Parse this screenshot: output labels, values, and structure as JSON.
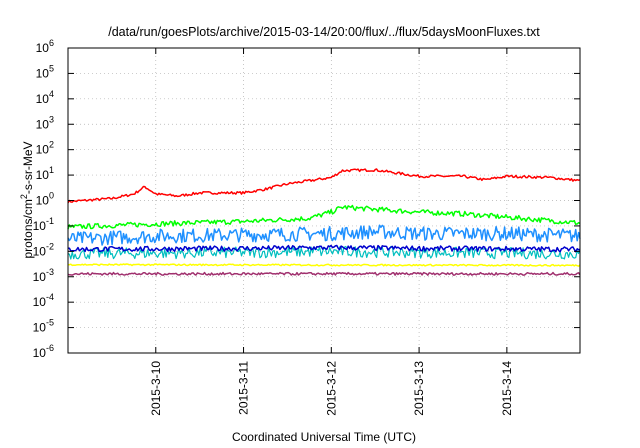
{
  "chart_data": {
    "type": "line",
    "title": "/data/run/goesPlots/archive/2015-03-14/20:00/flux/../flux/5daysMoonFluxes.txt",
    "xlabel": "Coordinated Universal Time (UTC)",
    "ylabel_parts": [
      "protons/cm",
      "2",
      "-s-sr-MeV"
    ],
    "y_scale": "log",
    "ylim": [
      1e-06,
      1000000.0
    ],
    "y_ticks": [
      {
        "base": "10",
        "exp": "-6",
        "value": 1e-06
      },
      {
        "base": "10",
        "exp": "-5",
        "value": 1e-05
      },
      {
        "base": "10",
        "exp": "-4",
        "value": 0.0001
      },
      {
        "base": "10",
        "exp": "-3",
        "value": 0.001
      },
      {
        "base": "10",
        "exp": "-2",
        "value": 0.01
      },
      {
        "base": "10",
        "exp": "-1",
        "value": 0.1
      },
      {
        "base": "10",
        "exp": "0",
        "value": 1
      },
      {
        "base": "10",
        "exp": "1",
        "value": 10
      },
      {
        "base": "10",
        "exp": "2",
        "value": 100
      },
      {
        "base": "10",
        "exp": "3",
        "value": 1000
      },
      {
        "base": "10",
        "exp": "4",
        "value": 10000
      },
      {
        "base": "10",
        "exp": "5",
        "value": 100000
      },
      {
        "base": "10",
        "exp": "6",
        "value": 1000000
      }
    ],
    "xlim": [
      "2015-03-09T00:00",
      "2015-03-14T20:00"
    ],
    "x_ticks": [
      {
        "label": "2015-3-10",
        "date": "2015-03-10T00:00"
      },
      {
        "label": "2015-3-11",
        "date": "2015-03-11T00:00"
      },
      {
        "label": "2015-3-12",
        "date": "2015-03-12T00:00"
      },
      {
        "label": "2015-3-13",
        "date": "2015-03-13T00:00"
      },
      {
        "label": "2015-3-14",
        "date": "2015-03-14T00:00"
      }
    ],
    "grid": true,
    "series": [
      {
        "color": "#ff0000",
        "width": 1.5,
        "jitter": 0.05,
        "x": [
          "2015-03-09T00:00",
          "2015-03-09T12:00",
          "2015-03-09T18:00",
          "2015-03-09T21:00",
          "2015-03-10T00:00",
          "2015-03-10T06:00",
          "2015-03-10T12:00",
          "2015-03-11T00:00",
          "2015-03-11T06:00",
          "2015-03-11T12:00",
          "2015-03-11T18:00",
          "2015-03-12T00:00",
          "2015-03-12T03:00",
          "2015-03-12T12:00",
          "2015-03-12T18:00",
          "2015-03-13T00:00",
          "2015-03-13T12:00",
          "2015-03-13T18:00",
          "2015-03-14T00:00",
          "2015-03-14T12:00",
          "2015-03-14T20:00"
        ],
        "y": [
          0.9,
          1.2,
          1.8,
          3.5,
          1.8,
          1.5,
          2.0,
          2.0,
          2.8,
          4.5,
          6.0,
          8.0,
          15,
          16,
          12,
          9,
          9,
          6.5,
          9,
          8,
          6
        ]
      },
      {
        "color": "#00ff00",
        "width": 1.5,
        "jitter": 0.1,
        "x": [
          "2015-03-09T00:00",
          "2015-03-10T00:00",
          "2015-03-11T00:00",
          "2015-03-11T18:00",
          "2015-03-12T00:00",
          "2015-03-12T03:00",
          "2015-03-12T12:00",
          "2015-03-13T00:00",
          "2015-03-13T12:00",
          "2015-03-14T00:00",
          "2015-03-14T20:00"
        ],
        "y": [
          0.09,
          0.12,
          0.15,
          0.2,
          0.35,
          0.55,
          0.45,
          0.35,
          0.3,
          0.22,
          0.13
        ]
      },
      {
        "color": "#1e90ff",
        "width": 1.5,
        "jitter": 0.28,
        "x": [
          "2015-03-09T00:00",
          "2015-03-10T00:00",
          "2015-03-11T00:00",
          "2015-03-12T00:00",
          "2015-03-12T12:00",
          "2015-03-13T00:00",
          "2015-03-14T00:00",
          "2015-03-14T20:00"
        ],
        "y": [
          0.03,
          0.04,
          0.045,
          0.05,
          0.06,
          0.05,
          0.05,
          0.04
        ]
      },
      {
        "color": "#00bfbf",
        "width": 1.2,
        "jitter": 0.22,
        "x": [
          "2015-03-09T00:00",
          "2015-03-11T00:00",
          "2015-03-12T00:00",
          "2015-03-13T00:00",
          "2015-03-14T20:00"
        ],
        "y": [
          0.008,
          0.009,
          0.01,
          0.009,
          0.008
        ]
      },
      {
        "color": "#0000cd",
        "width": 1.5,
        "jitter": 0.1,
        "x": [
          "2015-03-09T00:00",
          "2015-03-11T00:00",
          "2015-03-12T00:00",
          "2015-03-13T00:00",
          "2015-03-14T20:00"
        ],
        "y": [
          0.012,
          0.013,
          0.014,
          0.013,
          0.012
        ]
      },
      {
        "color": "#ffff00",
        "width": 1.5,
        "jitter": 0.03,
        "x": [
          "2015-03-09T00:00",
          "2015-03-14T20:00"
        ],
        "y": [
          0.003,
          0.0028
        ]
      },
      {
        "color": "#a0306e",
        "width": 1.5,
        "jitter": 0.05,
        "x": [
          "2015-03-09T00:00",
          "2015-03-14T20:00"
        ],
        "y": [
          0.0013,
          0.0013
        ]
      }
    ]
  }
}
